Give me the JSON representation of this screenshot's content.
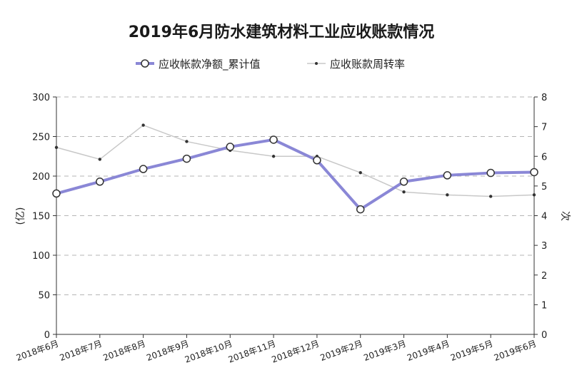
{
  "chart_data": {
    "type": "line",
    "title": "2019年6月防水建筑材料工业应收账款情况",
    "categories": [
      "2018年6月",
      "2018年7月",
      "2018年8月",
      "2018年9月",
      "2018年10月",
      "2018年11月",
      "2018年12月",
      "2019年2月",
      "2019年3月",
      "2019年4月",
      "2019年5月",
      "2019年6月"
    ],
    "ylabel": "(亿)",
    "ylabel2": "次",
    "ylim": [
      0,
      300
    ],
    "ylim2": [
      0,
      8
    ],
    "yticks": [
      "0",
      "50",
      "100",
      "150",
      "200",
      "250",
      "300"
    ],
    "yticks2": [
      "0",
      "1",
      "2",
      "3",
      "4",
      "5",
      "6",
      "7",
      "8"
    ],
    "grid": true,
    "legend_position": "top-center",
    "series": [
      {
        "name": "应收帐款净额_累计值",
        "axis": "left",
        "color": "#8a87d6",
        "values": [
          178,
          193,
          209,
          222,
          237,
          246,
          220,
          158,
          193,
          201,
          204,
          205
        ]
      },
      {
        "name": "应收账款周转率",
        "axis": "right",
        "color": "#c8c8c8",
        "values": [
          6.3,
          5.9,
          7.05,
          6.5,
          6.2,
          6.0,
          6.0,
          5.45,
          4.8,
          4.7,
          4.65,
          4.7
        ]
      }
    ]
  }
}
